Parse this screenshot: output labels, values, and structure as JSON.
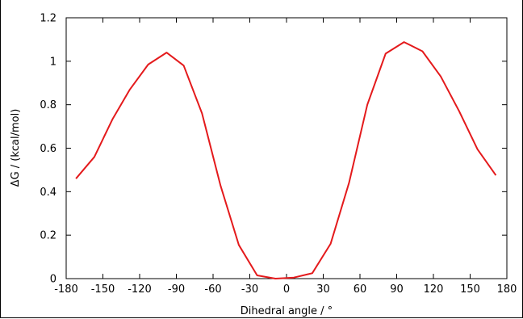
{
  "chart_data": {
    "type": "line",
    "title": "",
    "xlabel": "Dihedral angle / °",
    "ylabel": "ΔG / (kcal/mol)",
    "xlim": [
      -180,
      180
    ],
    "ylim": [
      0,
      1.2
    ],
    "xticks": [
      -180,
      -150,
      -120,
      -90,
      -60,
      -30,
      0,
      30,
      60,
      90,
      120,
      150,
      180
    ],
    "yticks": [
      0,
      0.2,
      0.4,
      0.6,
      0.8,
      1,
      1.2
    ],
    "xtick_labels": [
      "-180",
      "-150",
      "-120",
      "-90",
      "-60",
      "-30",
      "0",
      "30",
      "60",
      "90",
      "120",
      "150",
      "180"
    ],
    "ytick_labels": [
      "0",
      "0.2",
      "0.4",
      "0.6",
      "0.8",
      "1",
      "1.2"
    ],
    "grid": false,
    "legend": "none",
    "series": [
      {
        "color": "#e41a1c",
        "x": [
          -172,
          -157,
          -142,
          -128,
          -113,
          -98,
          -84,
          -69,
          -54,
          -39,
          -24,
          -9,
          6,
          21,
          36,
          51,
          66,
          81,
          96,
          111,
          126,
          141,
          156,
          171
        ],
        "y": [
          0.46,
          0.56,
          0.735,
          0.87,
          0.985,
          1.04,
          0.98,
          0.76,
          0.43,
          0.155,
          0.015,
          0.0,
          0.005,
          0.025,
          0.16,
          0.44,
          0.8,
          1.035,
          1.088,
          1.046,
          0.93,
          0.77,
          0.595,
          0.475
        ]
      }
    ]
  }
}
